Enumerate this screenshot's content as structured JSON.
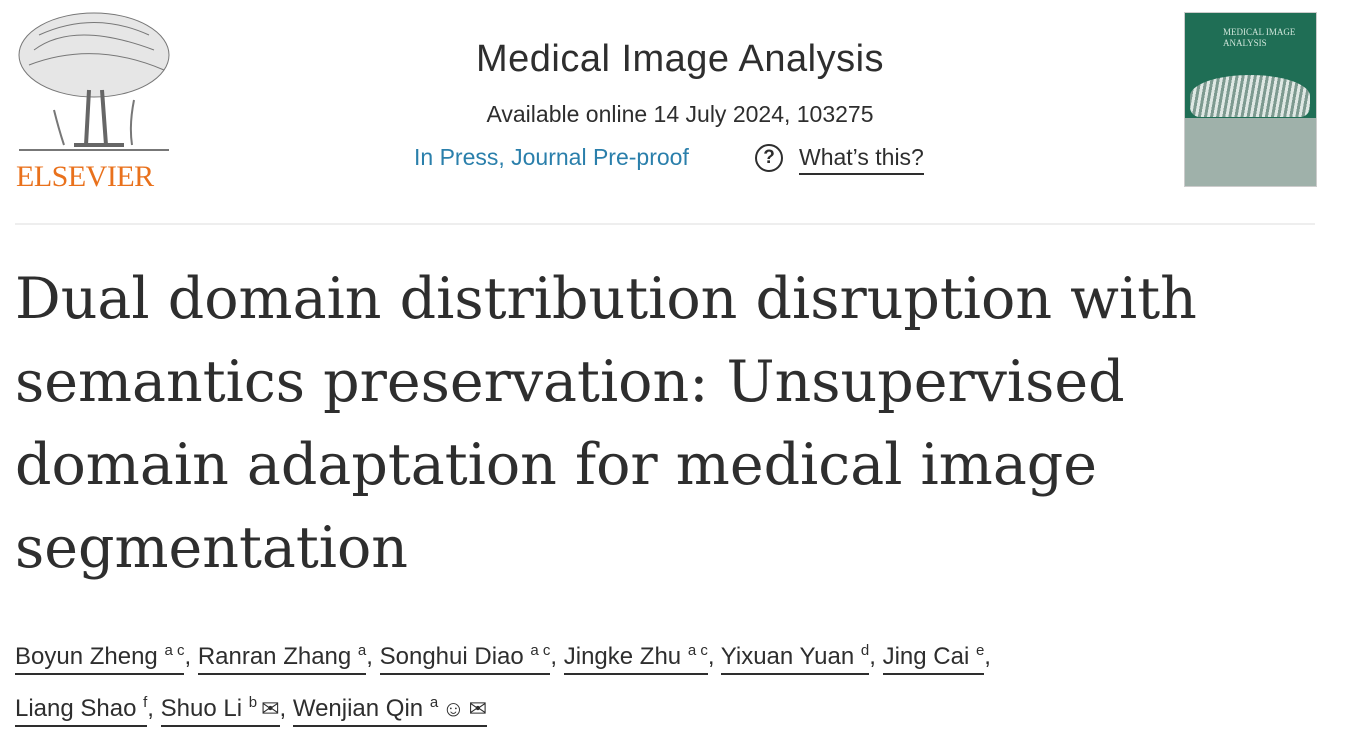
{
  "publisher": {
    "name": "ELSEVIER",
    "logo": "elsevier-tree-logo"
  },
  "journal": {
    "name": "Medical Image Analysis",
    "availability": "Available online 14 July 2024, 103275",
    "status": "In Press, Journal Pre-proof",
    "help_label": "What’s this?",
    "help_icon": "question-circle-icon"
  },
  "cover": {
    "title": "MEDICAL IMAGE ANALYSIS"
  },
  "article": {
    "title": "Dual domain distribution disruption with semantics preservation: Unsupervised domain adaptation for medical image segmentation"
  },
  "authors": [
    {
      "name": "Boyun Zheng",
      "aff": "a c",
      "sep": ", "
    },
    {
      "name": "Ranran Zhang",
      "aff": "a",
      "sep": ", "
    },
    {
      "name": "Songhui Diao",
      "aff": "a c",
      "sep": ", "
    },
    {
      "name": "Jingke Zhu",
      "aff": "a c",
      "sep": ", "
    },
    {
      "name": "Yixuan Yuan",
      "aff": "d",
      "sep": ", "
    },
    {
      "name": "Jing Cai",
      "aff": "e",
      "sep": ","
    },
    {
      "name": "Liang Shao",
      "aff": "f",
      "sep": ", "
    },
    {
      "name": "Shuo Li",
      "aff": "b",
      "icons": [
        "envelope-icon"
      ],
      "sep": ", "
    },
    {
      "name": "Wenjian Qin",
      "aff": "a",
      "icons": [
        "person-icon",
        "envelope-icon"
      ],
      "sep": ""
    }
  ]
}
